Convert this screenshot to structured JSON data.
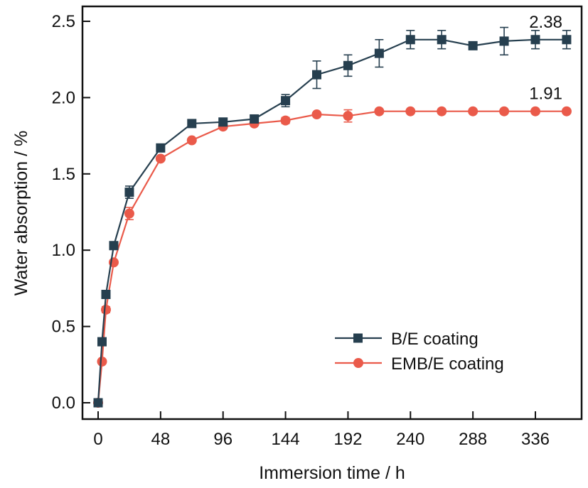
{
  "chart_data": {
    "type": "line",
    "title": "",
    "xlabel": "Immersion time / h",
    "ylabel": "Water absorption / %",
    "xlim": [
      -12,
      372
    ],
    "ylim": [
      -0.1,
      2.6
    ],
    "xticks": [
      0,
      48,
      96,
      144,
      192,
      240,
      288,
      336
    ],
    "xtick_labels": [
      "0",
      "48",
      "96",
      "144",
      "192",
      "240",
      "288",
      "336"
    ],
    "yticks": [
      0.0,
      0.5,
      1.0,
      1.5,
      2.0,
      2.5
    ],
    "ytick_labels": [
      "0.0",
      "0.5",
      "1.0",
      "1.5",
      "2.0",
      "2.5"
    ],
    "grid": false,
    "legend_position": "lower-right",
    "x": [
      0,
      3,
      6,
      12,
      24,
      48,
      72,
      96,
      120,
      144,
      168,
      192,
      216,
      240,
      264,
      288,
      312,
      336,
      360
    ],
    "series": [
      {
        "name": "B/E coating",
        "marker": "square",
        "color": "#263f4f",
        "values": [
          0,
          0.4,
          0.71,
          1.03,
          1.38,
          1.67,
          1.83,
          1.84,
          1.86,
          1.98,
          2.15,
          2.21,
          2.29,
          2.38,
          2.38,
          2.34,
          2.37,
          2.38,
          2.38
        ],
        "errors": [
          0,
          0.02,
          0.02,
          0.01,
          0.04,
          0.01,
          0.01,
          0.01,
          0.01,
          0.04,
          0.09,
          0.07,
          0.09,
          0.06,
          0.06,
          0.01,
          0.09,
          0.06,
          0.06
        ]
      },
      {
        "name": "EMB/E coating",
        "marker": "circle",
        "color": "#ea5a4a",
        "values": [
          0,
          0.27,
          0.61,
          0.92,
          1.24,
          1.6,
          1.72,
          1.81,
          1.83,
          1.85,
          1.89,
          1.88,
          1.91,
          1.91,
          1.91,
          1.91,
          1.91,
          1.91,
          1.91
        ],
        "errors": [
          0,
          0.01,
          0.02,
          0.01,
          0.04,
          0.01,
          0.01,
          0.01,
          0.01,
          0.02,
          0.01,
          0.04,
          0.01,
          0.01,
          0.01,
          0.01,
          0.01,
          0.01,
          0.01
        ]
      }
    ],
    "annotations": [
      {
        "text": "2.38",
        "x": 360,
        "y": 2.38,
        "series": "B/E coating"
      },
      {
        "text": "1.91",
        "x": 360,
        "y": 1.91,
        "series": "EMB/E coating"
      }
    ]
  }
}
